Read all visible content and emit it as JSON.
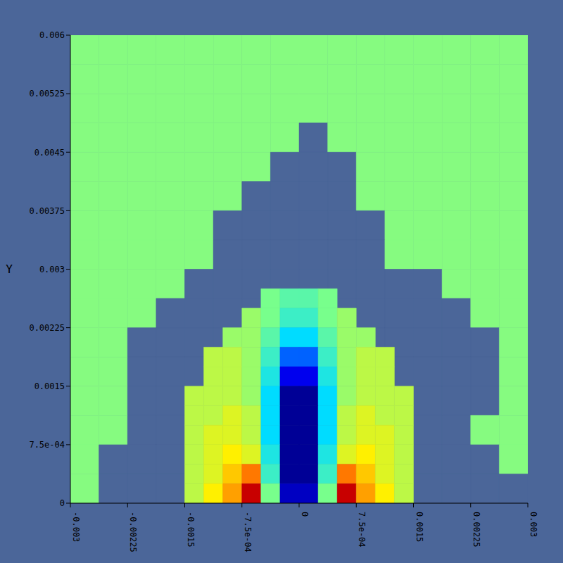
{
  "chart_data": {
    "type": "heatmap",
    "y_label": "Y",
    "xlim": [
      -0.003,
      0.003
    ],
    "ylim": [
      0,
      0.006
    ],
    "xticks": [
      -0.003,
      -0.00225,
      -0.0015,
      {
        "value": -0.00075,
        "label": "-7.5e-04"
      },
      0,
      {
        "value": 0.00075,
        "label": "7.5e-04"
      },
      0.0015,
      0.00225,
      0.003
    ],
    "yticks": [
      0,
      {
        "value": 0.00075,
        "label": "7.5e-04"
      },
      0.0015,
      0.00225,
      0.003,
      0.00375,
      0.0045,
      0.00525,
      0.006
    ],
    "cells": {
      "colors": [
        "#4b6699",
        "#86fb80"
      ],
      "values": [
        [
          1,
          1,
          1,
          1,
          1,
          1,
          1,
          1,
          1,
          1,
          1,
          1,
          1,
          1,
          1,
          1
        ],
        [
          1,
          1,
          1,
          1,
          1,
          1,
          1,
          1,
          1,
          1,
          1,
          1,
          1,
          1,
          1,
          1
        ],
        [
          1,
          1,
          1,
          1,
          1,
          1,
          1,
          1,
          1,
          1,
          1,
          1,
          1,
          1,
          1,
          1
        ],
        [
          1,
          1,
          1,
          1,
          1,
          1,
          1,
          1,
          0,
          1,
          1,
          1,
          1,
          1,
          1,
          1
        ],
        [
          1,
          1,
          1,
          1,
          1,
          1,
          1,
          0,
          0,
          0,
          1,
          1,
          1,
          1,
          1,
          1
        ],
        [
          1,
          1,
          1,
          1,
          1,
          1,
          0,
          0,
          0,
          0,
          1,
          1,
          1,
          1,
          1,
          1
        ],
        [
          1,
          1,
          1,
          1,
          1,
          0,
          0,
          0,
          0,
          0,
          0,
          1,
          1,
          1,
          1,
          1
        ],
        [
          1,
          1,
          1,
          1,
          1,
          0,
          0,
          0,
          0,
          0,
          0,
          1,
          1,
          1,
          1,
          1
        ],
        [
          1,
          1,
          1,
          1,
          0,
          0,
          0,
          0,
          0,
          0,
          0,
          0,
          0,
          1,
          1,
          1
        ],
        [
          1,
          1,
          1,
          0,
          0,
          0,
          0,
          0,
          0,
          0,
          0,
          0,
          0,
          0,
          1,
          1
        ],
        [
          1,
          1,
          0,
          0,
          0,
          0,
          0,
          0,
          0,
          0,
          0,
          0,
          0,
          0,
          0,
          1
        ],
        [
          1,
          1,
          0,
          0,
          0,
          0,
          0,
          0,
          0,
          0,
          0,
          0,
          0,
          0,
          0,
          1
        ],
        [
          1,
          1,
          0,
          0,
          0,
          0,
          0,
          0,
          0,
          0,
          0,
          0,
          0,
          0,
          0,
          1
        ],
        [
          1,
          1,
          0,
          0,
          0,
          0,
          0,
          0,
          0,
          0,
          0,
          0,
          0,
          0,
          1,
          1
        ],
        [
          1,
          0,
          0,
          0,
          0,
          0,
          0,
          0,
          0,
          0,
          0,
          0,
          0,
          0,
          0,
          1
        ],
        [
          1,
          0,
          0,
          0,
          0,
          0,
          0,
          0,
          0,
          0,
          0,
          0,
          0,
          0,
          0,
          0
        ]
      ]
    },
    "field": {
      "xlim": [
        -0.0015,
        0.0015
      ],
      "ylim": [
        0,
        0.00275
      ],
      "range": [
        0,
        1
      ],
      "values": [
        [
          null,
          null,
          null,
          null,
          0.5,
          0.45,
          0.45,
          0.5,
          null,
          null,
          null,
          null
        ],
        [
          null,
          null,
          null,
          0.55,
          0.5,
          0.4,
          0.4,
          0.5,
          0.55,
          null,
          null,
          null
        ],
        [
          null,
          null,
          0.55,
          0.55,
          0.45,
          0.3,
          0.3,
          0.45,
          0.55,
          0.55,
          null,
          null
        ],
        [
          null,
          0.6,
          0.6,
          0.55,
          0.4,
          0.2,
          0.2,
          0.4,
          0.55,
          0.6,
          0.6,
          null
        ],
        [
          null,
          0.6,
          0.6,
          0.55,
          0.35,
          0.1,
          0.1,
          0.35,
          0.55,
          0.6,
          0.6,
          null
        ],
        [
          0.6,
          0.6,
          0.6,
          0.55,
          0.3,
          0,
          0,
          0.3,
          0.55,
          0.6,
          0.6,
          0.6
        ],
        [
          0.6,
          0.6,
          0.65,
          0.6,
          0.3,
          0,
          0,
          0.3,
          0.6,
          0.65,
          0.6,
          0.6
        ],
        [
          0.6,
          0.65,
          0.65,
          0.6,
          0.3,
          0,
          0,
          0.3,
          0.6,
          0.65,
          0.65,
          0.6
        ],
        [
          0.6,
          0.65,
          0.7,
          0.65,
          0.35,
          0,
          0,
          0.35,
          0.65,
          0.7,
          0.65,
          0.6
        ],
        [
          0.6,
          0.65,
          0.75,
          0.85,
          0.4,
          0,
          0,
          0.4,
          0.85,
          0.75,
          0.65,
          0.6
        ],
        [
          0.6,
          0.7,
          0.8,
          1,
          0.5,
          0.05,
          0.05,
          0.5,
          1,
          0.8,
          0.7,
          0.6
        ]
      ]
    }
  }
}
